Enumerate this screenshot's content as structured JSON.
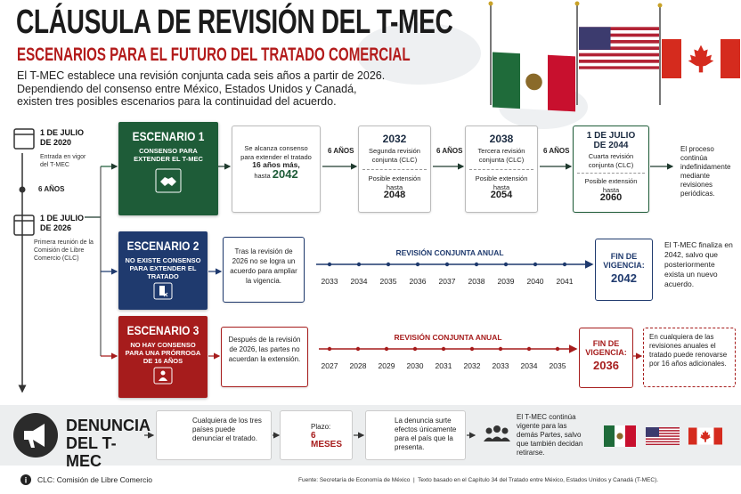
{
  "header": {
    "title": "CLÁUSULA DE REVISIÓN DEL T-MEC",
    "subtitle": "ESCENARIOS PARA EL FUTURO DEL TRATADO COMERCIAL",
    "intro": [
      "El T-MEC establece una revisión conjunta cada seis años a partir de 2026.",
      "Dependiendo del consenso entre México, Estados Unidos y Canadá,",
      "existen tres posibles escenarios para la continuidad del acuerdo."
    ]
  },
  "timeline": {
    "events": [
      {
        "date": "1 DE JULIO DE 2020",
        "desc": "Entrada en vigor del T-MEC"
      },
      {
        "date": "1 DE JULIO DE 2026",
        "desc": "Primera reunión de la Comisión de Libre Comercio (CLC)"
      }
    ],
    "gap": "6 AÑOS"
  },
  "scenarios": [
    {
      "title": "ESCENARIO 1",
      "label": "CONSENSO PARA EXTENDER EL T-MEC",
      "summary": {
        "text": "Se alcanza consenso para extender el tratado",
        "bold": "16 años más,",
        "prefix": "hasta",
        "year": 2042
      },
      "steps": [
        {
          "interval": "6 AÑOS",
          "date": "2032",
          "desc": "Segunda revisión conjunta (CLC)",
          "extension": "Posible extensión hasta",
          "year": 2048
        },
        {
          "interval": "6 AÑOS",
          "date": "2038",
          "desc": "Tercera revisión conjunta (CLC)",
          "extension": "Posible extensión hasta",
          "year": 2054
        },
        {
          "interval": "6 AÑOS",
          "date": "1 DE JULIO DE 2044",
          "desc": "Cuarta revisión conjunta (CLC)",
          "extension": "Posible extensión hasta",
          "year": 2060
        }
      ],
      "outcome": "El proceso continúa indefinidamente mediante revisiones periódicas."
    },
    {
      "title": "ESCENARIO 2",
      "label": "NO EXISTE CONSENSO PARA EXTENDER EL TRATADO",
      "summary": "Tras la revisión de 2026 no se logra un acuerdo para ampliar la vigencia.",
      "review_label": "REVISIÓN CONJUNTA ANUAL",
      "years": [
        2033,
        2034,
        2035,
        2036,
        2037,
        2038,
        2039,
        2040,
        2041
      ],
      "end": {
        "label": "FIN DE VIGENCIA:",
        "year": 2042
      },
      "outcome": "El T-MEC finaliza en 2042, salvo que posteriormente exista un nuevo acuerdo."
    },
    {
      "title": "ESCENARIO 3",
      "label": "NO HAY CONSENSO PARA UNA PRÓRROGA DE 16 AÑOS",
      "summary": "Después de la revisión de 2026, las partes no acuerdan la extensión.",
      "review_label": "REVISIÓN CONJUNTA ANUAL",
      "years": [
        2027,
        2028,
        2029,
        2030,
        2031,
        2032,
        2033,
        2034,
        2035
      ],
      "end": {
        "label": "FIN DE VIGENCIA:",
        "year": 2036
      },
      "outcome": "En cualquiera de las revisiones anuales el tratado puede renovarse por 16 años adicionales."
    }
  ],
  "denuncia": {
    "title": "DENUNCIA DEL T-MEC",
    "steps": [
      "Cualquiera de los tres países puede denunciar el tratado.",
      "La denuncia surte efectos únicamente para el país que la presenta.",
      "El T-MEC continúa vigente para las demás Partes, salvo que también decidan retirarse."
    ],
    "term": {
      "label": "Plazo:",
      "value": "6 MESES"
    }
  },
  "footer": {
    "note": "CLC: Comisión de Libre Comercio",
    "source": "Fuente: Secretaría de Economía de México  |  Texto basado en el Capítulo 34 del Tratado entre México, Estados Unidos y Canadá (T-MEC)."
  }
}
